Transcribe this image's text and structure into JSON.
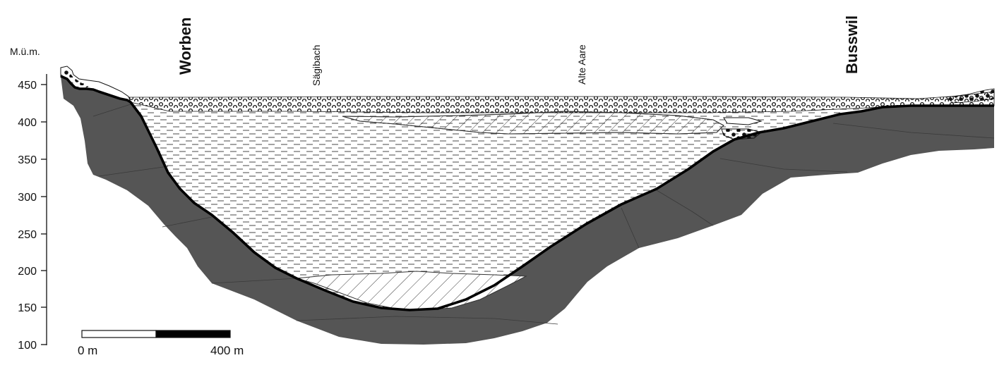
{
  "figure": {
    "axis_unit": "M.ü.m.",
    "y_ticks": [
      "450",
      "400",
      "350",
      "300",
      "250",
      "200",
      "150",
      "100"
    ],
    "places": {
      "left": "Worben",
      "right": "Busswil"
    },
    "streams": {
      "left": "Sägibach",
      "right": "Alte Aare"
    },
    "scale": {
      "start": "0 m",
      "end": "400 m"
    },
    "colors": {
      "bedrock": "#555555",
      "boundary": "#000000",
      "fill_lines": "#222222"
    },
    "layers": [
      "bedrock-icon",
      "gravel-pattern-icon",
      "lake-clay-pattern-icon",
      "sand-hatch-pattern-icon",
      "coarse-gravel-pattern-icon"
    ]
  }
}
